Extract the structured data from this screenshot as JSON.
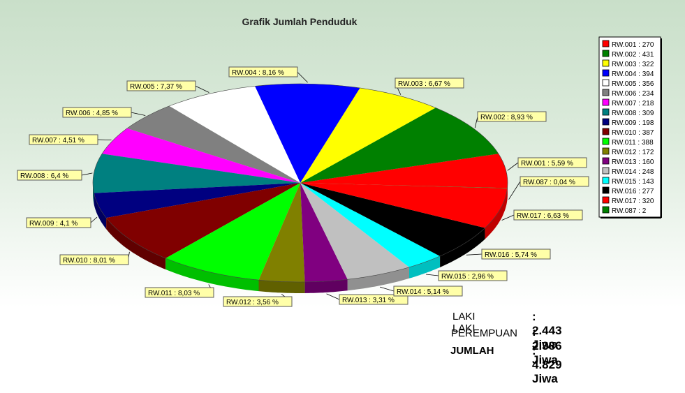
{
  "chart_data": {
    "type": "pie",
    "title": "Grafik Jumlah Penduduk",
    "slices": [
      {
        "legend": "RW.001 :  270",
        "label": "RW.001 :  5,59 %",
        "value": 270,
        "percent": 5.59,
        "color": "#ff0000"
      },
      {
        "legend": "RW.002 :  431",
        "label": "RW.002 :  8,93 %",
        "value": 431,
        "percent": 8.93,
        "color": "#008000"
      },
      {
        "legend": "RW.003 :  322",
        "label": "RW.003 :  6,67 %",
        "value": 322,
        "percent": 6.67,
        "color": "#ffff00"
      },
      {
        "legend": "RW.004 :  394",
        "label": "RW.004 :  8,16 %",
        "value": 394,
        "percent": 8.16,
        "color": "#0000ff"
      },
      {
        "legend": "RW.005 :  356",
        "label": "RW.005 :  7,37 %",
        "value": 356,
        "percent": 7.37,
        "color": "#ffffff"
      },
      {
        "legend": "RW.006 :  234",
        "label": "RW.006 :  4,85 %",
        "value": 234,
        "percent": 4.85,
        "color": "#808080"
      },
      {
        "legend": "RW.007 :  218",
        "label": "RW.007 :  4,51 %",
        "value": 218,
        "percent": 4.51,
        "color": "#ff00ff"
      },
      {
        "legend": "RW.008 :  309",
        "label": "RW.008 :  6,4 %",
        "value": 309,
        "percent": 6.4,
        "color": "#008080"
      },
      {
        "legend": "RW.009 :  198",
        "label": "RW.009 :  4,1 %",
        "value": 198,
        "percent": 4.1,
        "color": "#000080"
      },
      {
        "legend": "RW.010 :  387",
        "label": "RW.010 :  8,01 %",
        "value": 387,
        "percent": 8.01,
        "color": "#800000"
      },
      {
        "legend": "RW.011 :  388",
        "label": "RW.011 :  8,03 %",
        "value": 388,
        "percent": 8.03,
        "color": "#00ff00"
      },
      {
        "legend": "RW.012 :  172",
        "label": "RW.012 :  3,56 %",
        "value": 172,
        "percent": 3.56,
        "color": "#808000"
      },
      {
        "legend": "RW.013 :  160",
        "label": "RW.013 :  3,31 %",
        "value": 160,
        "percent": 3.31,
        "color": "#800080"
      },
      {
        "legend": "RW.014 :  248",
        "label": "RW.014 :  5,14 %",
        "value": 248,
        "percent": 5.14,
        "color": "#c0c0c0"
      },
      {
        "legend": "RW.015 :  143",
        "label": "RW.015 :  2,96 %",
        "value": 143,
        "percent": 2.96,
        "color": "#00ffff"
      },
      {
        "legend": "RW.016 :  277",
        "label": "RW.016 :  5,74 %",
        "value": 277,
        "percent": 5.74,
        "color": "#000000"
      },
      {
        "legend": "RW.017 :  320",
        "label": "RW.017 :  6,63 %",
        "value": 320,
        "percent": 6.63,
        "color": "#ff0000"
      },
      {
        "legend": "RW.087 :  2",
        "label": "RW.087 :  0,04 %",
        "value": 2,
        "percent": 0.04,
        "color": "#008000"
      }
    ],
    "legend_position": "right"
  },
  "summary": [
    {
      "label": "LAKI LAKI",
      "value": ": 2.443 Jiwa"
    },
    {
      "label": "PEREMPUAN",
      "value": ": 2.386 Jiwa"
    },
    {
      "label": "JUMLAH",
      "value": ": 4.829 Jiwa"
    }
  ]
}
